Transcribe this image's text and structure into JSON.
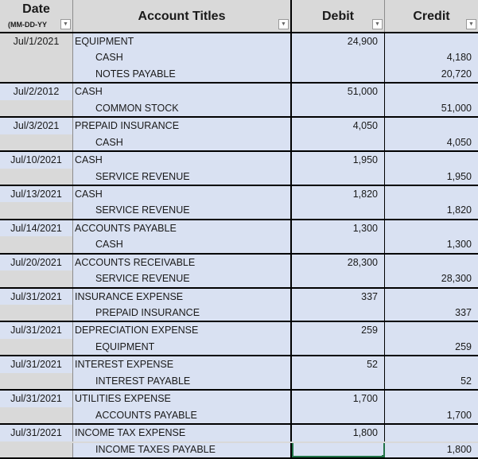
{
  "header": {
    "date": "Date",
    "date_format": "(MM-DD-YY",
    "account_titles": "Account Titles",
    "debit": "Debit",
    "credit": "Credit",
    "filter_icon": "dropdown-arrow"
  },
  "colors": {
    "header_bg": "#d9d9d9",
    "cell_bg": "#d9e1f2",
    "selection": "#217346"
  },
  "entries": [
    {
      "date": "Jul/1/2021",
      "lines": [
        {
          "account": "EQUIPMENT",
          "indent": false,
          "debit": "24,900",
          "credit": ""
        },
        {
          "account": "CASH",
          "indent": true,
          "debit": "",
          "credit": "4,180"
        },
        {
          "account": "NOTES PAYABLE",
          "indent": true,
          "debit": "",
          "credit": "20,720"
        }
      ]
    },
    {
      "date": "Jul/2/2012",
      "lines": [
        {
          "account": "CASH",
          "indent": false,
          "debit": "51,000",
          "credit": ""
        },
        {
          "account": "COMMON STOCK",
          "indent": true,
          "debit": "",
          "credit": "51,000"
        }
      ]
    },
    {
      "date": "Jul/3/2021",
      "lines": [
        {
          "account": "PREPAID INSURANCE",
          "indent": false,
          "debit": "4,050",
          "credit": ""
        },
        {
          "account": "CASH",
          "indent": true,
          "debit": "",
          "credit": "4,050"
        }
      ]
    },
    {
      "date": "Jul/10/2021",
      "lines": [
        {
          "account": "CASH",
          "indent": false,
          "debit": "1,950",
          "credit": ""
        },
        {
          "account": "SERVICE REVENUE",
          "indent": true,
          "debit": "",
          "credit": "1,950"
        }
      ]
    },
    {
      "date": "Jul/13/2021",
      "lines": [
        {
          "account": "CASH",
          "indent": false,
          "debit": "1,820",
          "credit": ""
        },
        {
          "account": "SERVICE REVENUE",
          "indent": true,
          "debit": "",
          "credit": "1,820"
        }
      ]
    },
    {
      "date": "Jul/14/2021",
      "lines": [
        {
          "account": "ACCOUNTS PAYABLE",
          "indent": false,
          "debit": "1,300",
          "credit": ""
        },
        {
          "account": "CASH",
          "indent": true,
          "debit": "",
          "credit": "1,300"
        }
      ]
    },
    {
      "date": "Jul/20/2021",
      "lines": [
        {
          "account": "ACCOUNTS RECEIVABLE",
          "indent": false,
          "debit": "28,300",
          "credit": ""
        },
        {
          "account": "SERVICE REVENUE",
          "indent": true,
          "debit": "",
          "credit": "28,300"
        }
      ]
    },
    {
      "date": "Jul/31/2021",
      "lines": [
        {
          "account": "INSURANCE EXPENSE",
          "indent": false,
          "debit": "337",
          "credit": ""
        },
        {
          "account": "PREPAID INSURANCE",
          "indent": true,
          "debit": "",
          "credit": "337"
        }
      ]
    },
    {
      "date": "Jul/31/2021",
      "lines": [
        {
          "account": "DEPRECIATION EXPENSE",
          "indent": false,
          "debit": "259",
          "credit": ""
        },
        {
          "account": "EQUIPMENT",
          "indent": true,
          "debit": "",
          "credit": "259"
        }
      ]
    },
    {
      "date": "Jul/31/2021",
      "lines": [
        {
          "account": "INTEREST EXPENSE",
          "indent": false,
          "debit": "52",
          "credit": ""
        },
        {
          "account": "INTEREST PAYABLE",
          "indent": true,
          "debit": "",
          "credit": "52"
        }
      ]
    },
    {
      "date": "Jul/31/2021",
      "lines": [
        {
          "account": "UTILITIES EXPENSE",
          "indent": false,
          "debit": "1,700",
          "credit": ""
        },
        {
          "account": "ACCOUNTS PAYABLE",
          "indent": true,
          "debit": "",
          "credit": "1,700"
        }
      ]
    },
    {
      "date": "Jul/31/2021",
      "lines": [
        {
          "account": "INCOME TAX EXPENSE",
          "indent": false,
          "debit": "1,800",
          "credit": ""
        },
        {
          "account": "INCOME TAXES PAYABLE",
          "indent": true,
          "debit": "",
          "credit": "1,800",
          "selected_debit": true
        }
      ]
    }
  ]
}
